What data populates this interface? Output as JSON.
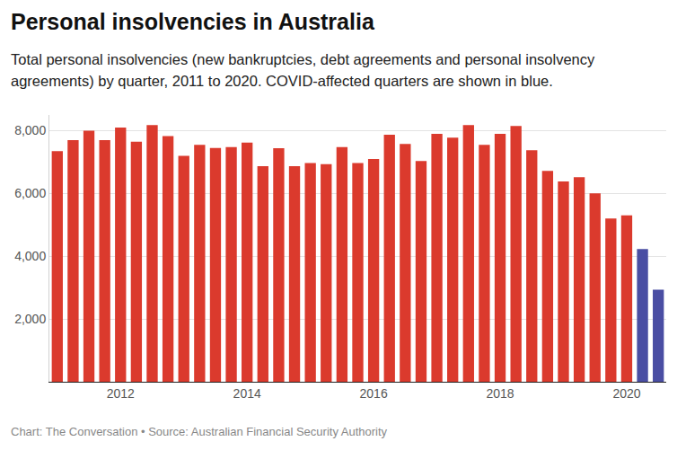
{
  "chart_data": {
    "type": "bar",
    "title": "Personal insolvencies in Australia",
    "subtitle": "Total personal insolvencies (new bankruptcies, debt agreements and personal insolvency agreements) by quarter, 2011 to 2020. COVID-affected quarters are shown in blue.",
    "source": "Chart: The Conversation • Source: Australian Financial Security Authority",
    "categories": [
      null,
      null,
      null,
      null,
      "2012",
      null,
      null,
      null,
      null,
      null,
      null,
      null,
      "2014",
      null,
      null,
      null,
      null,
      null,
      null,
      null,
      "2016",
      null,
      null,
      null,
      null,
      null,
      null,
      null,
      "2018",
      null,
      null,
      null,
      null,
      null,
      null,
      null,
      "2020",
      null,
      null
    ],
    "values": [
      7350,
      7700,
      8000,
      7700,
      8100,
      7650,
      8180,
      7830,
      7200,
      7550,
      7450,
      7480,
      7620,
      6870,
      7440,
      6870,
      6970,
      6930,
      7480,
      6970,
      7100,
      7870,
      7580,
      7030,
      7900,
      7780,
      8180,
      7550,
      7900,
      8150,
      7380,
      6720,
      6380,
      6520,
      6000,
      5200,
      5300,
      4230,
      2930
    ],
    "colors": [
      "#db3a2d",
      "#db3a2d",
      "#db3a2d",
      "#db3a2d",
      "#db3a2d",
      "#db3a2d",
      "#db3a2d",
      "#db3a2d",
      "#db3a2d",
      "#db3a2d",
      "#db3a2d",
      "#db3a2d",
      "#db3a2d",
      "#db3a2d",
      "#db3a2d",
      "#db3a2d",
      "#db3a2d",
      "#db3a2d",
      "#db3a2d",
      "#db3a2d",
      "#db3a2d",
      "#db3a2d",
      "#db3a2d",
      "#db3a2d",
      "#db3a2d",
      "#db3a2d",
      "#db3a2d",
      "#db3a2d",
      "#db3a2d",
      "#db3a2d",
      "#db3a2d",
      "#db3a2d",
      "#db3a2d",
      "#db3a2d",
      "#db3a2d",
      "#db3a2d",
      "#db3a2d",
      "#4a4ea3",
      "#4a4ea3"
    ],
    "ylim": [
      0,
      8500
    ],
    "yticks": [
      {
        "value": 2000,
        "label": "2,000"
      },
      {
        "value": 4000,
        "label": "4,000"
      },
      {
        "value": 6000,
        "label": "6,000"
      },
      {
        "value": 8000,
        "label": "8,000"
      }
    ],
    "grid": true
  }
}
